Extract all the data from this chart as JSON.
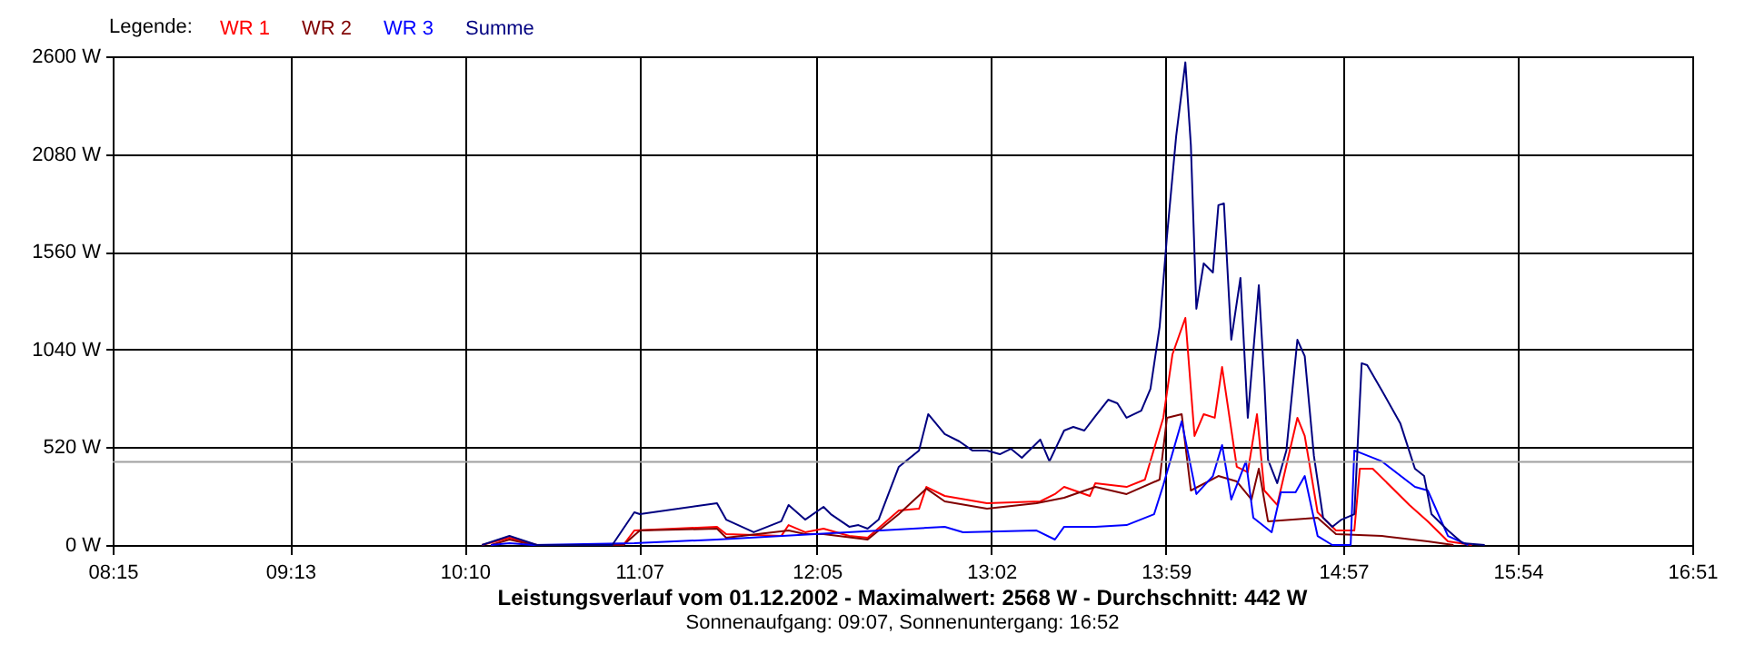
{
  "chart_data": {
    "type": "line",
    "title": "Leistungsverlauf vom 01.12.2002 - Maximalwert: 2568 W - Durchschnitt: 442 W",
    "subtitle": "Sonnenaufgang: 09:07, Sonnenuntergang: 16:52",
    "legend_title": "Legende:",
    "legend": "top left",
    "grid": true,
    "xlim": [
      8.25,
      16.85
    ],
    "xticks": [
      {
        "value": 8.25,
        "label": "08:15"
      },
      {
        "value": 9.2167,
        "label": "09:13"
      },
      {
        "value": 10.1667,
        "label": "10:10"
      },
      {
        "value": 11.1167,
        "label": "11:07"
      },
      {
        "value": 12.0833,
        "label": "12:05"
      },
      {
        "value": 13.0333,
        "label": "13:02"
      },
      {
        "value": 13.9833,
        "label": "13:59"
      },
      {
        "value": 14.95,
        "label": "14:57"
      },
      {
        "value": 15.9,
        "label": "15:54"
      },
      {
        "value": 16.85,
        "label": "16:51"
      }
    ],
    "ylim": [
      0,
      2600
    ],
    "yticks": [
      {
        "value": 0,
        "label": "0 W"
      },
      {
        "value": 520,
        "label": "520 W"
      },
      {
        "value": 1040,
        "label": "1040 W"
      },
      {
        "value": 1560,
        "label": "1560 W"
      },
      {
        "value": 2080,
        "label": "2080 W"
      },
      {
        "value": 2600,
        "label": "2600 W"
      }
    ],
    "ref_lines": [
      {
        "axis": "y",
        "value": 442,
        "color": "#a0a0a0"
      }
    ],
    "series": [
      {
        "name": "WR 1",
        "color": "#ff0000",
        "x": [
          10.26,
          10.41,
          10.56,
          11.03,
          11.09,
          11.54,
          11.59,
          11.89,
          11.93,
          12.02,
          12.12,
          12.26,
          12.36,
          12.53,
          12.64,
          12.68,
          12.78,
          13.01,
          13.3,
          13.38,
          13.43,
          13.57,
          13.6,
          13.77,
          13.87,
          13.97,
          14.02,
          14.09,
          14.14,
          14.19,
          14.25,
          14.29,
          14.37,
          14.43,
          14.48,
          14.52,
          14.59,
          14.7,
          14.74,
          14.81,
          14.91,
          15.01,
          15.04,
          15.11,
          15.31,
          15.41,
          15.52,
          15.65
        ],
        "values": [
          0,
          39,
          0,
          0,
          77,
          97,
          58,
          48,
          106,
          68,
          87,
          48,
          39,
          184,
          193,
          309,
          261,
          222,
          232,
          271,
          309,
          261,
          329,
          309,
          348,
          677,
          1015,
          1208,
          580,
          696,
          677,
          947,
          416,
          387,
          696,
          290,
          213,
          677,
          580,
          174,
          77,
          77,
          406,
          406,
          213,
          126,
          19,
          0
        ]
      },
      {
        "name": "WR 2",
        "color": "#800000",
        "x": [
          10.31,
          10.41,
          10.54,
          11.03,
          11.12,
          11.54,
          11.59,
          11.93,
          12.02,
          12.12,
          12.36,
          12.53,
          12.68,
          12.78,
          13.01,
          13.28,
          13.43,
          13.6,
          13.77,
          13.95,
          13.99,
          14.07,
          14.12,
          14.27,
          14.37,
          14.45,
          14.49,
          14.54,
          14.81,
          14.91,
          15.16,
          15.41,
          15.55
        ],
        "values": [
          0,
          29,
          0,
          0,
          77,
          87,
          39,
          77,
          58,
          58,
          29,
          164,
          300,
          232,
          193,
          222,
          251,
          309,
          271,
          348,
          677,
          696,
          290,
          367,
          338,
          242,
          406,
          126,
          145,
          58,
          48,
          19,
          0
        ]
      },
      {
        "name": "WR 3",
        "color": "#0000ff",
        "x": [
          10.31,
          10.41,
          10.54,
          11.09,
          11.54,
          12.78,
          12.88,
          13.28,
          13.38,
          13.43,
          13.6,
          13.77,
          13.92,
          13.97,
          14.07,
          14.15,
          14.24,
          14.29,
          14.34,
          14.42,
          14.46,
          14.56,
          14.61,
          14.69,
          14.74,
          14.81,
          14.89,
          14.99,
          15.01,
          15.16,
          15.34,
          15.41,
          15.52,
          15.63
        ],
        "values": [
          0,
          10,
          0,
          10,
          29,
          97,
          68,
          77,
          29,
          97,
          97,
          106,
          164,
          319,
          658,
          271,
          367,
          532,
          242,
          445,
          145,
          68,
          280,
          280,
          367,
          48,
          0,
          0,
          503,
          445,
          309,
          290,
          48,
          0
        ]
      },
      {
        "name": "Summe",
        "color": "#000080",
        "x": [
          10.26,
          10.41,
          10.56,
          10.97,
          11.09,
          11.12,
          11.54,
          11.59,
          11.74,
          11.89,
          11.93,
          12.02,
          12.12,
          12.16,
          12.26,
          12.31,
          12.36,
          12.42,
          12.53,
          12.64,
          12.69,
          12.78,
          12.86,
          12.93,
          13.01,
          13.08,
          13.14,
          13.2,
          13.3,
          13.35,
          13.43,
          13.48,
          13.54,
          13.6,
          13.67,
          13.72,
          13.77,
          13.85,
          13.9,
          13.95,
          13.99,
          14.04,
          14.09,
          14.12,
          14.15,
          14.19,
          14.24,
          14.27,
          14.3,
          14.34,
          14.39,
          14.43,
          14.49,
          14.52,
          14.54,
          14.59,
          14.64,
          14.7,
          14.74,
          14.79,
          14.84,
          14.89,
          14.94,
          15.01,
          15.05,
          15.08,
          15.16,
          15.26,
          15.34,
          15.39,
          15.43,
          15.52,
          15.6,
          15.72
        ],
        "values": [
          0,
          48,
          0,
          0,
          174,
          164,
          222,
          135,
          68,
          126,
          213,
          135,
          203,
          164,
          97,
          106,
          87,
          135,
          416,
          503,
          696,
          590,
          551,
          503,
          503,
          483,
          512,
          464,
          561,
          445,
          609,
          628,
          609,
          686,
          773,
          754,
          677,
          715,
          831,
          1160,
          1643,
          2175,
          2568,
          2127,
          1257,
          1498,
          1450,
          1808,
          1817,
          1092,
          1421,
          677,
          1382,
          870,
          454,
          329,
          503,
          1092,
          1005,
          474,
          145,
          97,
          135,
          164,
          967,
          957,
          822,
          648,
          406,
          367,
          164,
          77,
          10,
          0
        ]
      }
    ]
  }
}
